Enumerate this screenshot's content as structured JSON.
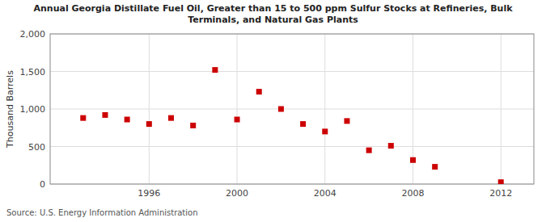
{
  "chart_data": {
    "type": "scatter",
    "title": "Annual Georgia Distillate Fuel Oil, Greater than 15 to 500 ppm Sulfur Stocks at Refineries, Bulk\nTerminals, and Natural Gas Plants",
    "ylabel": "Thousand Barrels",
    "source": "Source: U.S. Energy Information Administration",
    "x": [
      1993,
      1994,
      1995,
      1996,
      1997,
      1998,
      1999,
      2000,
      2001,
      2002,
      2003,
      2004,
      2005,
      2006,
      2007,
      2008,
      2009,
      2012
    ],
    "values": [
      880,
      920,
      860,
      800,
      880,
      780,
      1520,
      860,
      1230,
      1000,
      800,
      700,
      840,
      450,
      510,
      320,
      230,
      25
    ],
    "color": "#cc0000",
    "marker": "square",
    "xlim": [
      1991.5,
      2013.5
    ],
    "ylim": [
      0,
      2000
    ],
    "xticks": [
      1996,
      2000,
      2004,
      2008,
      2012
    ],
    "yticks": [
      0,
      500,
      {
        "value": 1000,
        "label": "1,000"
      },
      {
        "value": 1500,
        "label": "1,500"
      },
      {
        "value": 2000,
        "label": "2,000"
      }
    ],
    "grid": true
  }
}
